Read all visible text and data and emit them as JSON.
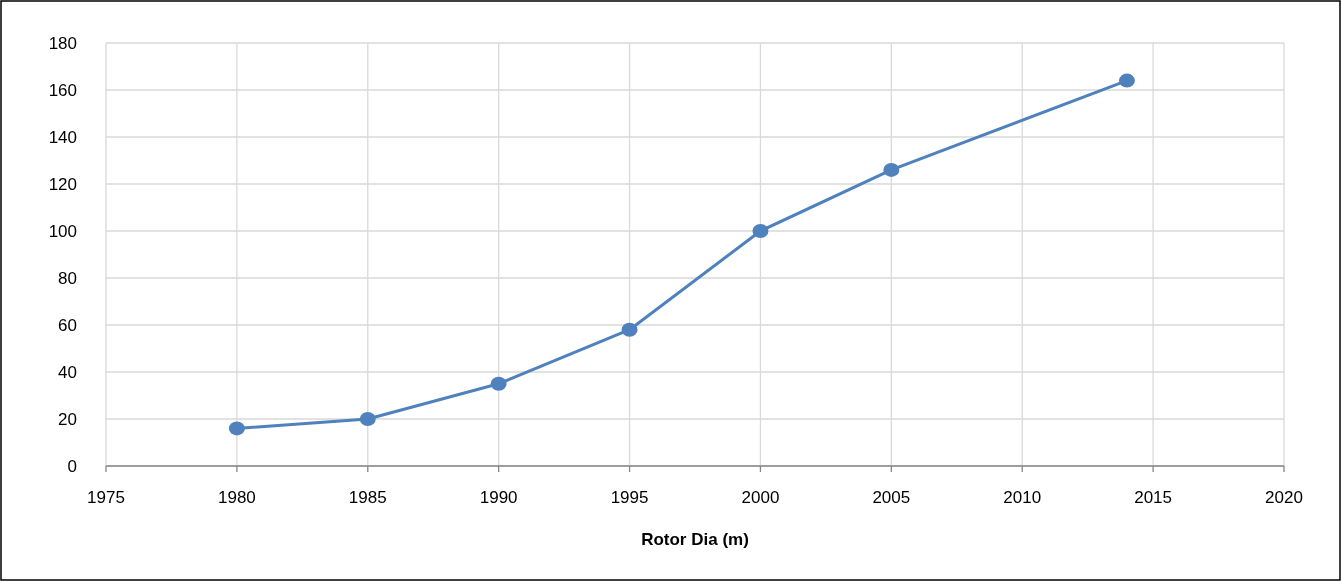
{
  "chart_data": {
    "type": "line",
    "xlabel": "Rotor Dia (m)",
    "x": [
      1980,
      1985,
      1990,
      1995,
      2000,
      2005,
      2014
    ],
    "series": [
      {
        "color": "#4f81bd",
        "values": [
          16,
          20,
          35,
          58,
          100,
          126,
          164
        ]
      }
    ],
    "xlim": [
      1975,
      2020
    ],
    "xticks": [
      1975,
      1980,
      1985,
      1990,
      1995,
      2000,
      2005,
      2010,
      2015,
      2020
    ],
    "ylim": [
      0,
      180
    ],
    "yticks": [
      0,
      20,
      40,
      60,
      80,
      100,
      120,
      140,
      160,
      180
    ],
    "grid": true,
    "marker": "circle",
    "line_style": "solid"
  }
}
